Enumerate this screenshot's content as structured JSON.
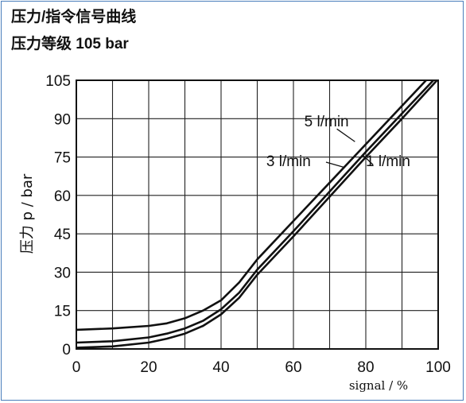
{
  "header": {
    "title_line1": "压力/指令信号曲线",
    "title_line2": "压力等级 105 bar"
  },
  "chart_data": {
    "type": "line",
    "xlabel": "signal / %",
    "ylabel": "压力 p / bar",
    "xlim": [
      0,
      100
    ],
    "ylim": [
      0,
      105
    ],
    "x_ticks": [
      0,
      20,
      40,
      60,
      80,
      100
    ],
    "y_ticks": [
      0,
      15,
      30,
      45,
      60,
      75,
      90,
      105
    ],
    "x_grid": [
      0,
      10,
      20,
      30,
      40,
      50,
      60,
      70,
      80,
      90,
      100
    ],
    "y_grid": [
      0,
      15,
      30,
      45,
      60,
      75,
      90,
      105
    ],
    "grid": true,
    "series": [
      {
        "name": "5 l/min",
        "x": [
          0,
          10,
          20,
          25,
          30,
          35,
          40,
          45,
          50,
          60,
          70,
          80,
          90,
          100
        ],
        "y": [
          7.5,
          8,
          9,
          10,
          12,
          15,
          19,
          26,
          35,
          50,
          65,
          80,
          95,
          110
        ]
      },
      {
        "name": "3 l/min",
        "x": [
          0,
          10,
          20,
          25,
          30,
          35,
          40,
          45,
          50,
          60,
          70,
          80,
          90,
          100
        ],
        "y": [
          2.5,
          3,
          4.5,
          6,
          8,
          11,
          15.5,
          22,
          31,
          46,
          61.5,
          77,
          92,
          107
        ]
      },
      {
        "name": "1 l/min",
        "x": [
          0,
          10,
          20,
          25,
          30,
          35,
          40,
          45,
          50,
          60,
          70,
          80,
          90,
          100
        ],
        "y": [
          0.5,
          1,
          2.5,
          4,
          6,
          9,
          13.5,
          20,
          29,
          44,
          59.5,
          75,
          90,
          105.5
        ]
      }
    ],
    "annotations": [
      {
        "text": "5 l/min",
        "x": 63,
        "y": 87
      },
      {
        "text": "3 l/min",
        "x": 52.5,
        "y": 71.5
      },
      {
        "text": "1 l/min",
        "x": 80,
        "y": 71.5
      }
    ]
  }
}
